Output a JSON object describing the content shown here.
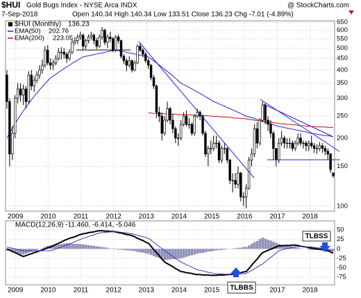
{
  "chart_data": [
    {
      "type": "candlestick",
      "title": "$HUI",
      "subtitle": "Gold Bugs Index - NYSE Arca INDX",
      "source": "@ StockCharts.com",
      "date": "7-Sep-2018",
      "quote": "Open 140.34  High 140.34  Low 133.51  Close 136.23  Chg -7.01 (-4.89%)",
      "log_scale": true,
      "grid": true,
      "ylim": [
        95,
        660
      ],
      "yticks": [
        100,
        150,
        200,
        250,
        300,
        350,
        400,
        450,
        500,
        550,
        600,
        650
      ],
      "xlim": [
        2008.7,
        2018.75
      ],
      "xticks": [
        2009,
        2010,
        2011,
        2012,
        2013,
        2014,
        2015,
        2016,
        2017,
        2018
      ],
      "ohlc": {
        "name": "$HUI (Monthly)",
        "color": "#000000",
        "open": [
          380,
          290,
          170,
          210,
          300,
          330,
          310,
          330,
          290,
          380,
          340,
          360,
          380,
          400,
          420,
          490,
          430,
          420,
          430,
          450,
          480,
          480,
          470,
          450,
          480,
          530,
          540,
          560,
          570,
          510,
          540,
          560,
          570,
          540,
          510,
          560,
          600,
          530,
          560,
          550,
          490,
          560,
          540,
          460,
          440,
          420,
          440,
          400,
          430,
          510,
          490,
          470,
          440,
          420,
          370,
          340,
          260,
          250,
          210,
          240,
          270,
          240,
          220,
          200,
          200,
          230,
          250,
          230,
          230,
          210,
          250,
          260,
          250,
          210,
          170,
          180,
          180,
          190,
          190,
          160,
          180,
          180,
          160,
          130,
          130,
          125,
          140,
          110,
          110,
          120,
          160,
          170,
          220,
          190,
          240,
          280,
          240,
          230,
          210,
          180,
          160,
          190,
          200,
          190,
          190,
          190,
          180,
          190,
          200,
          190,
          190,
          185,
          190,
          185,
          180,
          180,
          185,
          180,
          175,
          170,
          140.34
        ],
        "high": [
          400,
          300,
          225,
          310,
          350,
          350,
          345,
          340,
          395,
          400,
          375,
          395,
          420,
          445,
          510,
          515,
          450,
          445,
          465,
          500,
          505,
          500,
          480,
          495,
          545,
          560,
          575,
          590,
          580,
          550,
          575,
          590,
          580,
          555,
          575,
          620,
          610,
          575,
          590,
          560,
          570,
          575,
          545,
          470,
          450,
          460,
          445,
          440,
          520,
          525,
          500,
          480,
          450,
          425,
          380,
          345,
          275,
          260,
          250,
          290,
          275,
          255,
          225,
          210,
          240,
          260,
          265,
          245,
          235,
          255,
          270,
          265,
          255,
          215,
          185,
          195,
          205,
          205,
          195,
          185,
          190,
          182,
          162,
          140,
          140,
          150,
          142,
          115,
          125,
          165,
          180,
          230,
          235,
          245,
          290,
          285,
          250,
          240,
          215,
          180,
          200,
          215,
          205,
          200,
          200,
          195,
          195,
          210,
          210,
          195,
          195,
          195,
          205,
          190,
          188,
          192,
          190,
          185,
          180,
          172,
          140.34
        ],
        "low": [
          270,
          150,
          160,
          200,
          285,
          290,
          280,
          270,
          285,
          325,
          320,
          350,
          365,
          385,
          410,
          420,
          400,
          400,
          420,
          440,
          445,
          450,
          430,
          440,
          470,
          515,
          520,
          545,
          490,
          495,
          525,
          545,
          520,
          495,
          500,
          545,
          515,
          500,
          530,
          480,
          480,
          525,
          450,
          425,
          395,
          410,
          390,
          395,
          425,
          480,
          455,
          430,
          405,
          360,
          330,
          245,
          235,
          195,
          205,
          235,
          230,
          210,
          190,
          185,
          195,
          225,
          225,
          220,
          205,
          205,
          245,
          240,
          205,
          165,
          150,
          170,
          175,
          180,
          155,
          155,
          170,
          155,
          125,
          115,
          120,
          120,
          105,
          100,
          98,
          118,
          150,
          165,
          180,
          185,
          235,
          230,
          215,
          200,
          160,
          150,
          155,
          185,
          180,
          180,
          180,
          175,
          175,
          185,
          185,
          180,
          175,
          175,
          180,
          172,
          170,
          175,
          172,
          168,
          160,
          140,
          133.51
        ],
        "close": [
          290,
          170,
          210,
          300,
          330,
          310,
          330,
          290,
          380,
          340,
          360,
          380,
          400,
          420,
          490,
          430,
          420,
          430,
          450,
          480,
          480,
          470,
          450,
          480,
          530,
          540,
          560,
          570,
          510,
          540,
          560,
          570,
          540,
          510,
          560,
          600,
          530,
          560,
          550,
          490,
          560,
          540,
          460,
          440,
          420,
          440,
          400,
          430,
          510,
          490,
          470,
          440,
          420,
          370,
          340,
          260,
          250,
          210,
          240,
          270,
          240,
          220,
          200,
          200,
          230,
          250,
          230,
          230,
          210,
          250,
          260,
          250,
          210,
          170,
          180,
          180,
          190,
          190,
          160,
          180,
          180,
          160,
          130,
          130,
          125,
          140,
          110,
          110,
          120,
          160,
          170,
          220,
          190,
          240,
          280,
          240,
          230,
          210,
          180,
          160,
          190,
          200,
          190,
          190,
          190,
          180,
          190,
          200,
          190,
          190,
          185,
          190,
          185,
          180,
          180,
          185,
          180,
          175,
          170,
          145,
          136.23
        ]
      },
      "series": [
        {
          "name": "EMA(50)",
          "color": "#2222dd",
          "values": [
            200,
            211,
            221,
            232,
            242,
            253,
            263,
            274,
            284,
            295,
            306,
            316,
            327,
            337,
            348,
            358,
            369,
            376,
            383,
            391,
            398,
            406,
            413,
            420,
            428,
            435,
            442,
            450,
            457,
            460,
            463,
            465,
            468,
            471,
            474,
            476,
            479,
            482,
            485,
            487,
            490,
            487,
            485,
            482,
            479,
            476,
            474,
            471,
            468,
            465,
            463,
            460,
            457,
            448,
            439,
            430,
            421,
            412,
            403,
            394,
            386,
            377,
            368,
            359,
            350,
            345,
            340,
            335,
            330,
            325,
            320,
            315,
            310,
            305,
            300,
            295,
            290,
            287,
            283,
            280,
            277,
            273,
            270,
            267,
            263,
            260,
            257,
            253,
            250,
            248,
            246,
            244,
            242,
            240,
            238,
            235,
            233,
            231,
            229,
            227,
            225,
            224,
            223,
            221,
            220,
            219,
            218,
            216,
            215,
            214,
            213,
            211,
            210,
            209,
            208,
            207,
            206,
            205,
            205,
            204,
            202.76
          ]
        },
        {
          "name": "EMA(200)",
          "color": "#c01010",
          "values": [
            null,
            null,
            null,
            null,
            null,
            null,
            null,
            null,
            null,
            null,
            null,
            null,
            null,
            null,
            null,
            null,
            null,
            null,
            null,
            null,
            null,
            null,
            null,
            null,
            null,
            null,
            null,
            null,
            null,
            null,
            null,
            null,
            null,
            null,
            null,
            null,
            null,
            null,
            null,
            null,
            null,
            null,
            null,
            null,
            null,
            null,
            null,
            null,
            null,
            null,
            null,
            null,
            258,
            258,
            257,
            257,
            257,
            256,
            256,
            256,
            255,
            255,
            255,
            254,
            254,
            254,
            253,
            253,
            253,
            252,
            252,
            252,
            251,
            251,
            251,
            250,
            250,
            249,
            249,
            248,
            248,
            247,
            247,
            246,
            245,
            245,
            244,
            244,
            243,
            242,
            241,
            240,
            239,
            238,
            237,
            237,
            236,
            235,
            234,
            233,
            232,
            231,
            231,
            230,
            230,
            229,
            229,
            228,
            227,
            227,
            226,
            226,
            225,
            225,
            224,
            224,
            224,
            224,
            223,
            223,
            223.05
          ]
        }
      ]
    },
    {
      "type": "macd",
      "label": "MACD(12,26,9) -11.460, -6.414, -5.046",
      "grid": true,
      "ylim": [
        -95,
        74
      ],
      "yticks": [
        50,
        25,
        0,
        -25,
        -50,
        -75
      ],
      "xlim": [
        2008.7,
        2018.75
      ],
      "xticks": [
        2009,
        2010,
        2011,
        2012,
        2013,
        2014,
        2015,
        2016,
        2017,
        2018
      ],
      "series": [
        {
          "color": "#000000",
          "width": 2,
          "values": [
            0,
            -3,
            -7,
            -10,
            -13,
            -17,
            -20,
            -18,
            -15,
            -13,
            -10,
            -8,
            -5,
            -3,
            0,
            3,
            5,
            8,
            12,
            15,
            18,
            22,
            25,
            28,
            30,
            32,
            35,
            38,
            40,
            41,
            43,
            44,
            45,
            47,
            48,
            48,
            47,
            47,
            46,
            46,
            45,
            43,
            42,
            40,
            38,
            37,
            35,
            32,
            28,
            25,
            22,
            18,
            15,
            7,
            -2,
            -10,
            -18,
            -27,
            -35,
            -39,
            -43,
            -47,
            -52,
            -56,
            -60,
            -61,
            -63,
            -64,
            -65,
            -67,
            -68,
            -68,
            -69,
            -69,
            -69,
            -70,
            -70,
            -70,
            -69,
            -69,
            -69,
            -68,
            -68,
            -67,
            -65,
            -64,
            -63,
            -61,
            -60,
            -52,
            -43,
            -35,
            -27,
            -18,
            -10,
            -7,
            -4,
            -1,
            2,
            5,
            8,
            8,
            9,
            9,
            9,
            10,
            10,
            9,
            7,
            6,
            5,
            3,
            2,
            1,
            0,
            -1,
            -2,
            -4,
            -5,
            -8,
            -11.46
          ]
        },
        {
          "color": "#3535c8",
          "width": 1,
          "values": [
            5,
            3,
            2,
            0,
            -2,
            -3,
            -5,
            -5,
            -5,
            -5,
            -5,
            -5,
            -5,
            -5,
            -5,
            -5,
            -5,
            -3,
            0,
            3,
            5,
            8,
            10,
            13,
            16,
            19,
            22,
            25,
            28,
            30,
            33,
            35,
            37,
            40,
            42,
            43,
            43,
            44,
            45,
            45,
            46,
            45,
            44,
            43,
            42,
            41,
            40,
            38,
            36,
            34,
            32,
            30,
            28,
            23,
            17,
            12,
            6,
            1,
            -5,
            -10,
            -15,
            -20,
            -25,
            -30,
            -35,
            -38,
            -42,
            -45,
            -48,
            -52,
            -55,
            -57,
            -58,
            -60,
            -62,
            -63,
            -65,
            -66,
            -66,
            -66,
            -67,
            -67,
            -68,
            -68,
            -67,
            -67,
            -66,
            -66,
            -65,
            -61,
            -57,
            -53,
            -48,
            -44,
            -40,
            -34,
            -28,
            -23,
            -17,
            -11,
            -5,
            -3,
            -1,
            1,
            2,
            4,
            6,
            6,
            6,
            6,
            5,
            5,
            5,
            4,
            3,
            2,
            0,
            -1,
            -2,
            -4,
            -6.414
          ]
        }
      ],
      "histogram": {
        "color": "#8f8fb8",
        "values": [
          -5,
          -6,
          -9,
          -10,
          -11,
          -14,
          -15,
          -13,
          -10,
          -8,
          -5,
          -3,
          0,
          2,
          5,
          8,
          10,
          11,
          12,
          12,
          13,
          14,
          15,
          15,
          14,
          13,
          13,
          13,
          12,
          11,
          10,
          9,
          8,
          7,
          6,
          5,
          4,
          3,
          1,
          1,
          -1,
          -2,
          -2,
          -3,
          -4,
          -4,
          -5,
          -6,
          -8,
          -9,
          -10,
          -12,
          -13,
          -16,
          -19,
          -22,
          -24,
          -28,
          -30,
          -29,
          -28,
          -27,
          -27,
          -26,
          -25,
          -23,
          -21,
          -19,
          -17,
          -15,
          -13,
          -11,
          -11,
          -9,
          -7,
          -7,
          -5,
          -4,
          -3,
          -3,
          -2,
          -1,
          0,
          1,
          2,
          3,
          3,
          5,
          5,
          9,
          14,
          18,
          21,
          26,
          30,
          27,
          24,
          22,
          19,
          16,
          13,
          11,
          10,
          8,
          7,
          6,
          4,
          3,
          1,
          0,
          0,
          -2,
          -3,
          -3,
          -3,
          -3,
          -2,
          -3,
          -3,
          -4,
          -5.046
        ]
      },
      "annotations": [
        "TLBSS",
        "TLBBS"
      ]
    }
  ]
}
